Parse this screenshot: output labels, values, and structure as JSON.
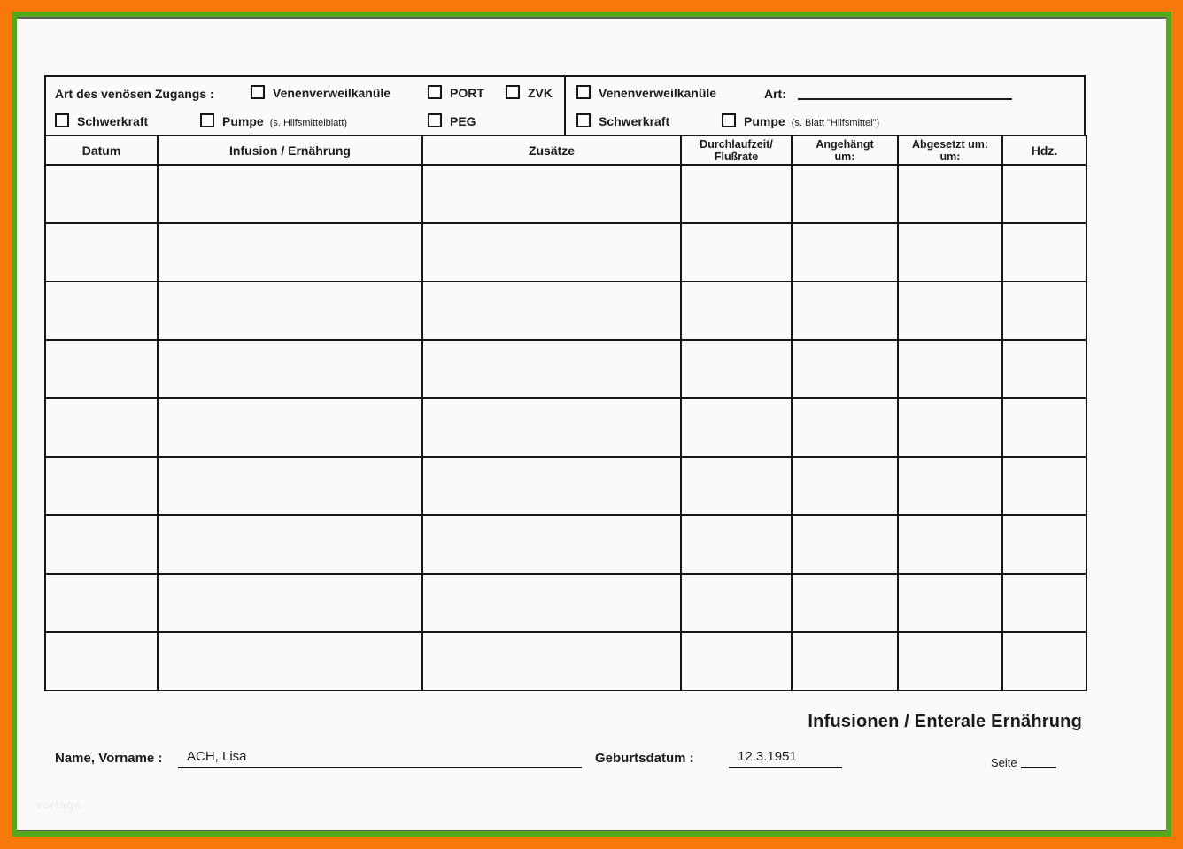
{
  "colors": {
    "outer_border": "#F8780A",
    "inner_border": "#55A81C",
    "shadow_line": "#5E5E5E",
    "paper": "#FAFAFA",
    "ink": "#1A1A1A"
  },
  "watermark": "vorlage",
  "access_header": {
    "left": {
      "title": "Art des venösen Zugangs :",
      "row1": [
        {
          "label": "Venenverweilkanüle"
        },
        {
          "label": "PORT"
        },
        {
          "label": "ZVK"
        }
      ],
      "row2": [
        {
          "label": "Schwerkraft"
        },
        {
          "label": "Pumpe",
          "note": "(s. Hilfsmittelblatt)"
        },
        {
          "label": "PEG"
        }
      ]
    },
    "right": {
      "row1": [
        {
          "label": "Venenverweilkanüle"
        }
      ],
      "art_label": "Art:",
      "row2": [
        {
          "label": "Schwerkraft"
        },
        {
          "label": "Pumpe",
          "note": "(s. Blatt \"Hilfsmittel\")"
        }
      ]
    }
  },
  "table": {
    "columns": [
      {
        "label": "Datum"
      },
      {
        "label": "Infusion / Ernährung"
      },
      {
        "label": "Zusätze"
      },
      {
        "line1": "Durchlaufzeit/",
        "line2": "Flußrate"
      },
      {
        "line1": "Angehängt",
        "line2": "um:"
      },
      {
        "line1": "Abgesetzt um:",
        "line2": "um:"
      },
      {
        "label": "Hdz."
      }
    ],
    "row_count": 9
  },
  "footer": {
    "title": "Infusionen / Enterale Ernährung",
    "name_label": "Name, Vorname :",
    "name_value": "ACH, Lisa",
    "dob_label": "Geburtsdatum :",
    "dob_value": "12.3.1951",
    "page_label": "Seite"
  }
}
